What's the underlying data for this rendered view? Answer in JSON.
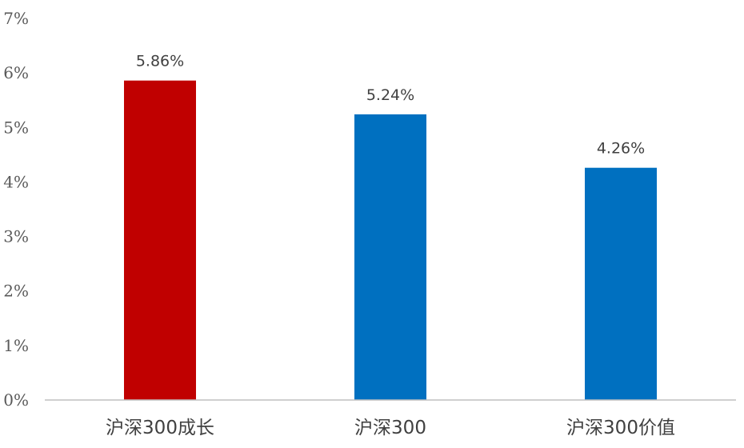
{
  "chart_data": {
    "type": "bar",
    "title": "",
    "xlabel": "",
    "ylabel": "",
    "categories": [
      "沪深300成长",
      "沪深300",
      "沪深300价值"
    ],
    "values": [
      5.86,
      5.24,
      4.26
    ],
    "data_labels": [
      "5.86%",
      "5.24%",
      "4.26%"
    ],
    "colors": [
      "#c00000",
      "#0070c0",
      "#0070c0"
    ],
    "ylim": [
      0,
      7
    ],
    "yticks": [
      0,
      1,
      2,
      3,
      4,
      5,
      6,
      7
    ],
    "ytick_labels": [
      "0%",
      "1%",
      "2%",
      "3%",
      "4%",
      "5%",
      "6%",
      "7%"
    ],
    "grid": false,
    "legend": "none"
  }
}
